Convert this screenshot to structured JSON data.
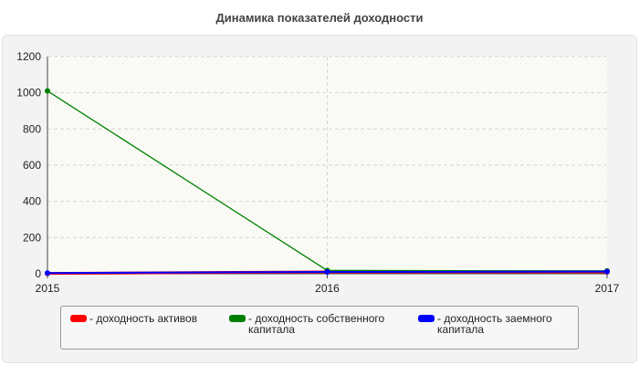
{
  "chart_data": {
    "type": "line",
    "title": "Динамика показателей доходности",
    "xlabel": "",
    "ylabel": "",
    "x": [
      "2015",
      "2016",
      "2017"
    ],
    "ylim": [
      0,
      1200
    ],
    "yticks": [
      "0",
      "200",
      "400",
      "600",
      "800",
      "1000",
      "1200"
    ],
    "grid": true,
    "legend_position": "bottom",
    "series": [
      {
        "name": "- доходность активов",
        "values": [
          2,
          10,
          10
        ],
        "color": "#ff0000"
      },
      {
        "name": "- доходность собственного капитала",
        "values": [
          1010,
          18,
          16
        ],
        "color": "#008000"
      },
      {
        "name": "- доходность заемного капитала",
        "values": [
          4,
          10,
          12
        ],
        "color": "#0000ff"
      }
    ]
  }
}
